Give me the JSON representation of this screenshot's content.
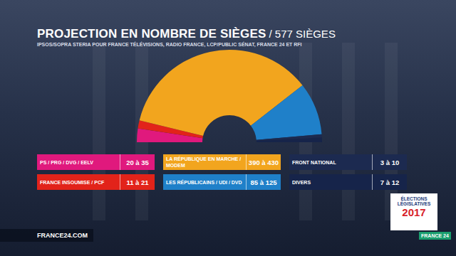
{
  "chart_data": {
    "type": "pie",
    "title": "PROJECTION EN NOMBRE DE SIÈGES",
    "title_suffix": "/ 577 SIÈGES",
    "subtitle": "IPSOS/SOPRA STERIA POUR FRANCE TÉLÉVISIONS, RADIO FRANCE, LCP/PUBLIC SÉNAT, FRANCE 24 ET RFI",
    "categories": [
      "PS / PRG / DVG / EELV",
      "FRANCE INSOUMISE / PCF",
      "LA RÉPUBLIQUE EN MARCHE / MODEM",
      "LES RÉPUBLICAINS / UDI / DVD",
      "FRONT NATIONAL",
      "DIVERS"
    ],
    "values": [
      27.5,
      16,
      410,
      105,
      6.5,
      9.5
    ],
    "range_labels": [
      "20 à 35",
      "11 à 21",
      "390 à 430",
      "85 à 125",
      "3 à 10",
      "7 à 12"
    ],
    "colors": [
      "#e0197d",
      "#e2231a",
      "#f2a51e",
      "#1f80c9",
      "#1c2a50",
      "#16244a"
    ],
    "data_labels": false,
    "legend": "bottom"
  },
  "footer": {
    "url": "FRANCE24.COM",
    "badge": [
      "ÉLECTIONS",
      "LÉGISLATIVES",
      "2017"
    ],
    "channel": "FRANCE 24"
  }
}
